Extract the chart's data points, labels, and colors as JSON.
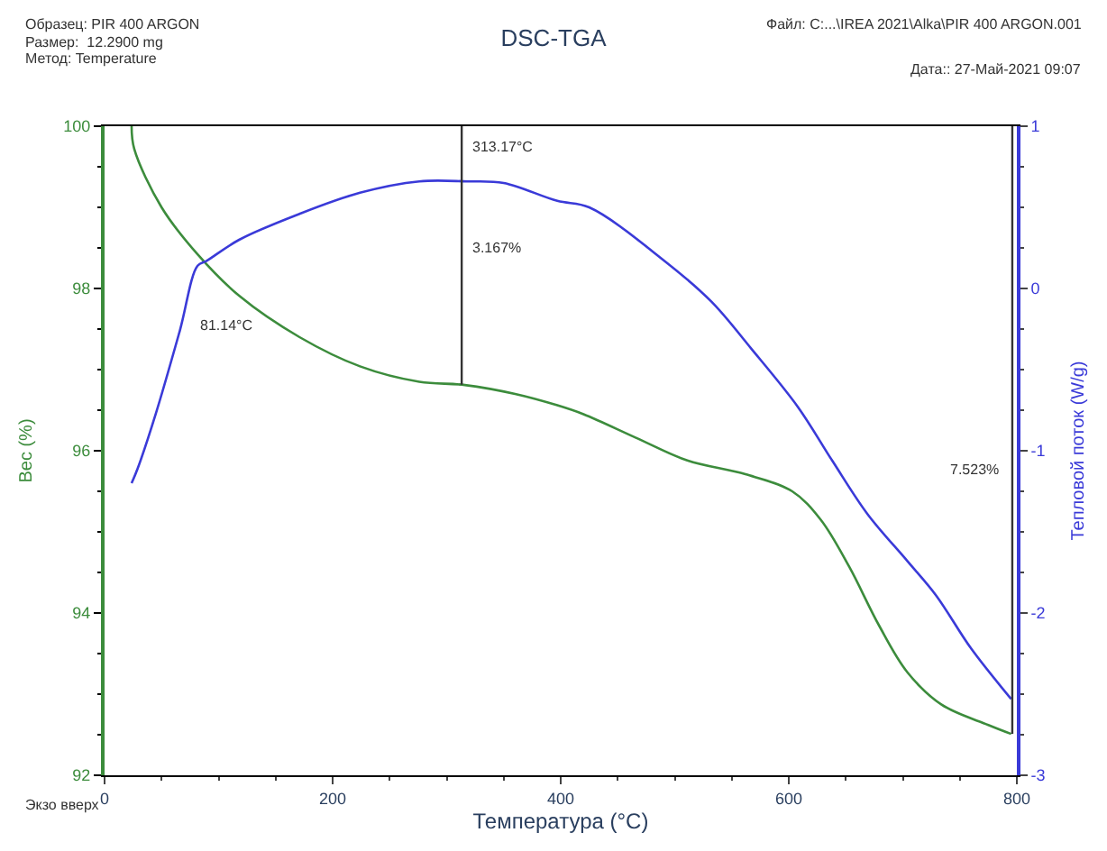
{
  "chart_data": {
    "type": "line",
    "title": "DSC-TGA",
    "xlabel": "Температура (°C)",
    "ylabel": "Вес (%)",
    "y2label": "Тепловой поток (W/g)",
    "annotations": [
      "Образец: PIR 400 ARGON",
      "Размер:  12.2900 mg",
      "Метод: Temperature",
      "Файл: C:...\\IREA 2021\\Alka\\PIR 400 ARGON.001",
      "Дата:: 27-Май-2021 09:07",
      "Экзо вверх",
      "313.17°C",
      "3.167%",
      "81.14°C",
      "7.523%"
    ],
    "series": [
      {
        "color": "#3c8c3c",
        "x": [
          23.7,
          26,
          50,
          81.6,
          118,
          171,
          224,
          276,
          316,
          360,
          397,
          420,
          466,
          511,
          562,
          603,
          628,
          653,
          679,
          704,
          734,
          775,
          795
        ],
        "values": [
          100,
          99.72,
          99.0,
          98.42,
          97.91,
          97.4,
          97.04,
          96.85,
          96.81,
          96.7,
          96.56,
          96.45,
          96.16,
          95.88,
          95.71,
          95.5,
          95.15,
          94.57,
          93.85,
          93.27,
          92.87,
          92.62,
          92.51
        ]
      },
      {
        "color": "#3a3ad8",
        "axis": "y2",
        "x": [
          23.7,
          29,
          45,
          66,
          81.6,
          89.5,
          118,
          171,
          224,
          276,
          318,
          350,
          397,
          425,
          491,
          532,
          567,
          608,
          638,
          669,
          704,
          729,
          760,
          795
        ],
        "values": [
          -1.2,
          -1.11,
          -0.77,
          -0.26,
          0.14,
          0.17,
          0.3,
          0.46,
          0.59,
          0.66,
          0.66,
          0.65,
          0.54,
          0.5,
          0.17,
          -0.08,
          -0.37,
          -0.73,
          -1.06,
          -1.39,
          -1.68,
          -1.89,
          -2.22,
          -2.53
        ]
      }
    ],
    "xlim": [
      0,
      800
    ],
    "xticks": [
      0,
      200,
      400,
      600,
      800
    ],
    "ylim": [
      92,
      100
    ],
    "yticks": [
      92,
      94,
      96,
      98,
      100
    ],
    "y2lim": [
      -3,
      1
    ],
    "y2ticks": [
      -3,
      -2,
      -1,
      0,
      1
    ],
    "ref_lines": [
      {
        "axis": "x",
        "value": 313.17
      },
      {
        "axis": "x",
        "value": 796
      }
    ],
    "marker": "none",
    "line_style": "solid"
  }
}
